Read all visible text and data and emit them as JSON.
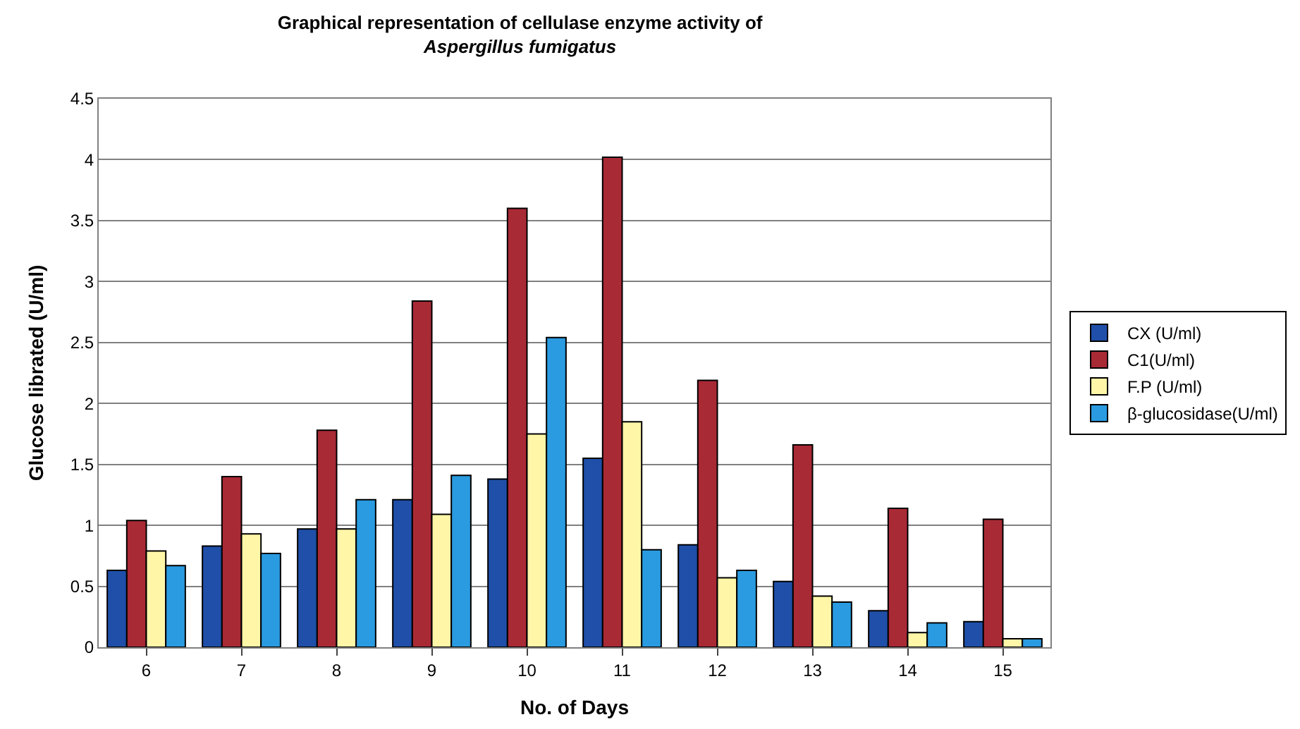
{
  "chart_data": {
    "type": "bar",
    "title": "Graphical representation of cellulase enzyme activity of\nAspergillus fumigatus",
    "xlabel": "No. of Days",
    "ylabel": "Glucose librated (U/ml)",
    "categories": [
      "6",
      "7",
      "8",
      "9",
      "10",
      "11",
      "12",
      "13",
      "14",
      "15"
    ],
    "series": [
      {
        "name": "CX (U/ml)",
        "color": "#1f4fa8",
        "values": [
          0.63,
          0.83,
          0.97,
          1.21,
          1.38,
          1.55,
          0.84,
          0.54,
          0.3,
          0.21
        ]
      },
      {
        "name": "C1(U/ml)",
        "color": "#a82a35",
        "values": [
          1.04,
          1.4,
          1.78,
          2.84,
          3.6,
          4.02,
          2.19,
          1.66,
          1.14,
          1.05
        ]
      },
      {
        "name": "F.P (U/ml)",
        "color": "#fff6a8",
        "values": [
          0.79,
          0.93,
          0.97,
          1.09,
          1.75,
          1.85,
          0.57,
          0.42,
          0.12,
          0.07
        ]
      },
      {
        "name": "β-glucosidase(U/ml)",
        "color": "#2a9be0",
        "values": [
          0.67,
          0.77,
          1.21,
          1.41,
          2.54,
          0.8,
          0.63,
          0.37,
          0.2,
          0.07
        ]
      }
    ],
    "ylim": [
      0,
      4.5
    ],
    "yticks": [
      0,
      0.5,
      1,
      1.5,
      2,
      2.5,
      3,
      3.5,
      4,
      4.5
    ],
    "grid": "y",
    "legend": "right"
  }
}
